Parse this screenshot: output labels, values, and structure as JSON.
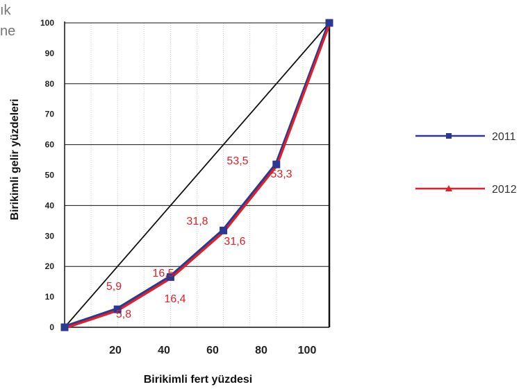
{
  "corner_text": [
    "ık",
    "ne"
  ],
  "chart_data": {
    "type": "line",
    "title": "",
    "xlabel": "Birikimli fert yüzdesi",
    "ylabel": "Birikimli gelir yüzdeleri",
    "x_ticks": [
      "20",
      "40",
      "60",
      "80",
      "100"
    ],
    "y_ticks": [
      "0",
      "10",
      "20",
      "30",
      "40",
      "50",
      "60",
      "70",
      "80",
      "90",
      "100"
    ],
    "ylim": [
      0,
      100
    ],
    "grid": "horizontal lines every 20, dotted vertical lines every 10",
    "legend_position": "right",
    "x": [
      0,
      20,
      40,
      60,
      80,
      100
    ],
    "series": [
      {
        "name": "2011",
        "values": [
          0,
          5.9,
          16.5,
          31.8,
          53.5,
          100
        ],
        "labels": [
          "",
          "5,9",
          "16,5",
          "31,8",
          "53,5",
          ""
        ],
        "color": "#2b3990",
        "marker": "square"
      },
      {
        "name": "2012",
        "values": [
          0,
          5.8,
          16.4,
          31.6,
          53.3,
          100
        ],
        "labels": [
          "",
          "5,8",
          "16,4",
          "31,6",
          "53,3",
          ""
        ],
        "color": "#e31e26",
        "marker": "triangle"
      }
    ],
    "equality_line": {
      "from": [
        0,
        0
      ],
      "to": [
        100,
        100
      ],
      "color": "#111111"
    }
  }
}
